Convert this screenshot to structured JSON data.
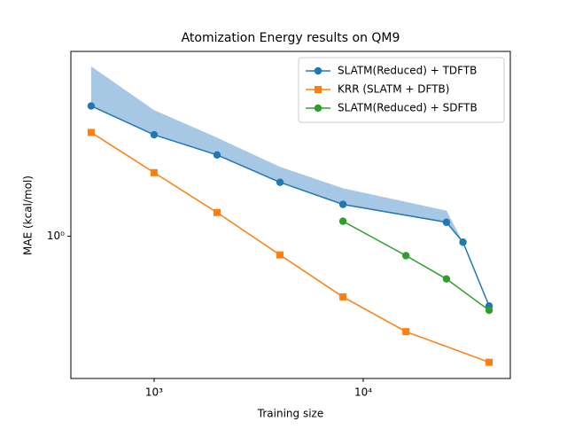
{
  "chart_data": {
    "type": "line",
    "title": "Atomization Energy results on QM9",
    "x_label": "Training size",
    "y_label": "MAE (kcal/mol)",
    "log_x": true,
    "log_y": true,
    "legend": "upper right",
    "xlim": [
      400,
      50500
    ],
    "ylim": [
      0.29,
      5
    ],
    "xticks": [
      {
        "value": 1000,
        "label": "10³"
      },
      {
        "value": 10000,
        "label": "10⁴"
      }
    ],
    "yticks": [
      {
        "value": 1,
        "label": "10⁰"
      }
    ],
    "band": {
      "color": "#a6c8e4",
      "x": [
        500,
        1000,
        2000,
        4000,
        8000,
        25000,
        30000,
        40000
      ],
      "upper": [
        4.39,
        3.0,
        2.36,
        1.83,
        1.52,
        1.25,
        0.95,
        0.545
      ]
    },
    "series": [
      {
        "name": "SLATM(Reduced) + TDFTB",
        "color": "#1f77b4",
        "marker": "circle",
        "x": [
          500,
          1000,
          2000,
          4000,
          8000,
          25000,
          30000,
          40000
        ],
        "values": [
          3.11,
          2.42,
          2.03,
          1.6,
          1.32,
          1.13,
          0.95,
          0.545
        ]
      },
      {
        "name": "KRR (SLATM + DFTB)",
        "color": "#ff7f0e",
        "marker": "square",
        "x": [
          500,
          1000,
          2000,
          4000,
          8000,
          16000,
          40000
        ],
        "values": [
          2.47,
          1.74,
          1.23,
          0.85,
          0.59,
          0.436,
          0.334
        ]
      },
      {
        "name": "SLATM(Reduced) + SDFTB",
        "color": "#2ca02c",
        "marker": "circle",
        "x": [
          8000,
          16000,
          25000,
          40000
        ],
        "values": [
          1.14,
          0.845,
          0.69,
          0.525
        ]
      }
    ]
  }
}
